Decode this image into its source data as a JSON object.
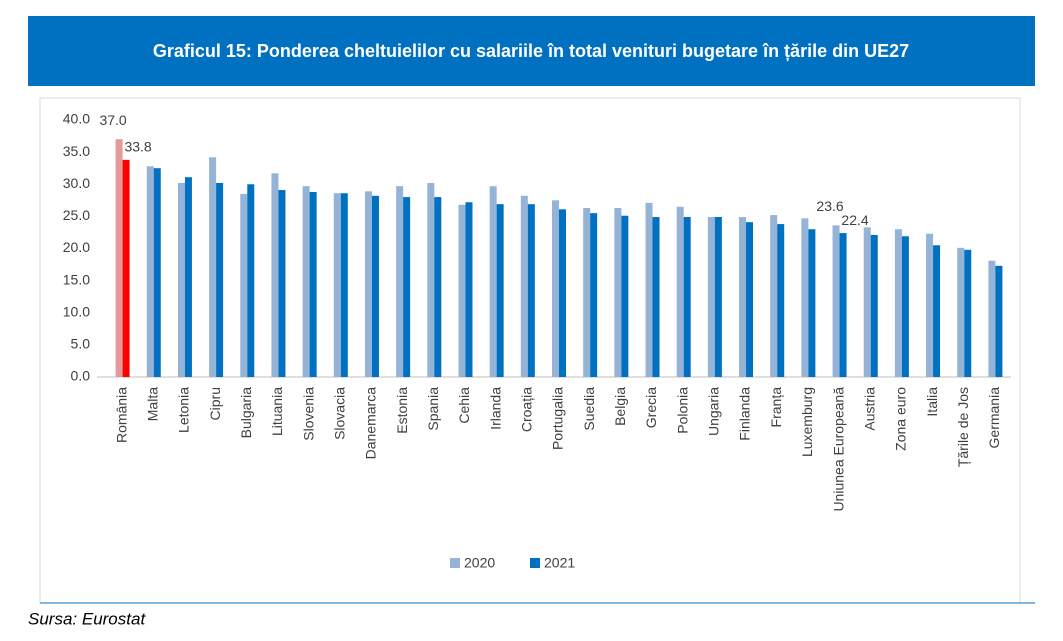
{
  "chart_data": {
    "type": "bar",
    "title": "Graficul 15: Ponderea cheltuielilor cu salariile în total venituri bugetare în țările din UE27",
    "source": "Sursa: Eurostat",
    "categories": [
      "România",
      "Malta",
      "Letonia",
      "Cipru",
      "Bulgaria",
      "Lituania",
      "Slovenia",
      "Slovacia",
      "Danemarca",
      "Estonia",
      "Spania",
      "Cehia",
      "Irlanda",
      "Croația",
      "Portugalia",
      "Suedia",
      "Belgia",
      "Grecia",
      "Polonia",
      "Ungaria",
      "Finlanda",
      "Franța",
      "Luxemburg",
      "Uniunea Europeană",
      "Austria",
      "Zona euro",
      "Italia",
      "Țările de Jos",
      "Germania"
    ],
    "series": [
      {
        "name": "2020",
        "color": "#95b3d7",
        "point_colors": [
          "#e6999b",
          null,
          null,
          null,
          null,
          null,
          null,
          null,
          null,
          null,
          null,
          null,
          null,
          null,
          null,
          null,
          null,
          null,
          null,
          null,
          null,
          null,
          null,
          null,
          null,
          null,
          null,
          null,
          null
        ],
        "values": [
          37.0,
          32.8,
          30.2,
          34.2,
          28.5,
          31.7,
          29.7,
          28.6,
          28.9,
          29.7,
          30.2,
          26.8,
          29.7,
          28.2,
          27.5,
          26.3,
          26.3,
          27.1,
          26.5,
          24.9,
          24.9,
          25.2,
          24.7,
          23.6,
          23.3,
          23.0,
          22.3,
          20.1,
          18.1
        ],
        "value_labels": [
          "37.0",
          null,
          null,
          null,
          null,
          null,
          null,
          null,
          null,
          null,
          null,
          null,
          null,
          null,
          null,
          null,
          null,
          null,
          null,
          null,
          null,
          null,
          null,
          "23.6",
          null,
          null,
          null,
          null,
          null
        ]
      },
      {
        "name": "2021",
        "color": "#0070c0",
        "point_colors": [
          "#ff0000",
          null,
          null,
          null,
          null,
          null,
          null,
          null,
          null,
          null,
          null,
          null,
          null,
          null,
          null,
          null,
          null,
          null,
          null,
          null,
          null,
          null,
          null,
          null,
          null,
          null,
          null,
          null,
          null
        ],
        "values": [
          33.8,
          32.5,
          31.1,
          30.2,
          30.0,
          29.1,
          28.8,
          28.6,
          28.2,
          28.0,
          28.0,
          27.2,
          26.9,
          26.9,
          26.1,
          25.5,
          25.1,
          24.9,
          24.9,
          24.9,
          24.1,
          23.8,
          23.0,
          22.4,
          22.1,
          21.9,
          20.5,
          19.8,
          17.3
        ],
        "value_labels": [
          "33.8",
          null,
          null,
          null,
          null,
          null,
          null,
          null,
          null,
          null,
          null,
          null,
          null,
          null,
          null,
          null,
          null,
          null,
          null,
          null,
          null,
          null,
          null,
          "22.4",
          null,
          null,
          null,
          null,
          null
        ]
      }
    ],
    "ylim": [
      0,
      40
    ],
    "yticks": [
      {
        "value": 0,
        "label": "0.0"
      },
      {
        "value": 5,
        "label": "5.0"
      },
      {
        "value": 10,
        "label": "10.0"
      },
      {
        "value": 15,
        "label": "15.0"
      },
      {
        "value": 20,
        "label": "20.0"
      },
      {
        "value": 25,
        "label": "25.0"
      },
      {
        "value": 30,
        "label": "30.0"
      },
      {
        "value": 35,
        "label": "35.0"
      },
      {
        "value": 40,
        "label": "40.0"
      }
    ],
    "grid": false,
    "legend": "bottom"
  }
}
